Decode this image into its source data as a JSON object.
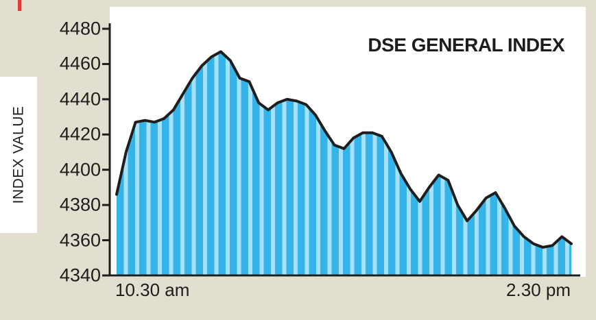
{
  "colors": {
    "page_background": "#e2dfd1",
    "plot_background": "#ffffff",
    "area_bar_dark": "#35b4e9",
    "area_bar_light": "#a6e2f7",
    "line": "#1f1e1c",
    "axis": "#1d1d1b",
    "text": "#1d1d1b",
    "crop_mark": "#e23b3c"
  },
  "chart_data": {
    "type": "area",
    "title": "DSE GENERAL INDEX",
    "ylabel": "INDEX VALUE",
    "xlabel": "",
    "x_tick_labels": [
      "10.30 am",
      "2.30 pm"
    ],
    "x_range": {
      "start": "10.30 am",
      "end": "2.30 pm"
    },
    "ylim": [
      4340,
      4480
    ],
    "yticks": [
      4340,
      4360,
      4380,
      4400,
      4420,
      4440,
      4460,
      4480
    ],
    "grid": false,
    "legend": false,
    "values": [
      4386,
      4410,
      4427,
      4428,
      4427,
      4429,
      4434,
      4443,
      4452,
      4459,
      4464,
      4467,
      4462,
      4452,
      4450,
      4438,
      4434,
      4438,
      4440,
      4439,
      4437,
      4431,
      4422,
      4414,
      4412,
      4418,
      4421,
      4421,
      4419,
      4410,
      4398,
      4389,
      4382,
      4390,
      4397,
      4394,
      4380,
      4371,
      4377,
      4384,
      4387,
      4378,
      4368,
      4362,
      4358,
      4356,
      4357,
      4362,
      4358
    ]
  }
}
